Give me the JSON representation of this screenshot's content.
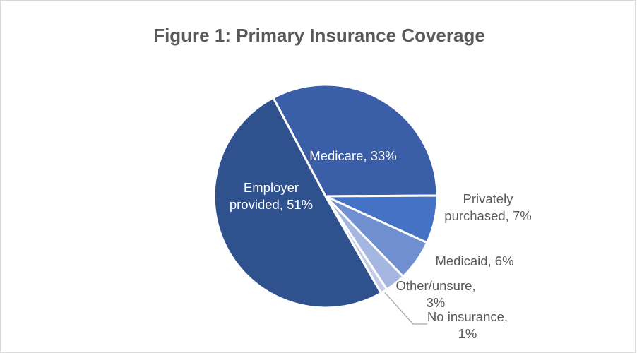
{
  "chart_data": {
    "type": "pie",
    "title": "Figure 1: Primary Insurance Coverage",
    "slices": [
      {
        "label": "Medicare",
        "value": 33,
        "display": "Medicare, 33%",
        "lines": [
          "Medicare, 33%"
        ],
        "color": "#3a5ea8"
      },
      {
        "label": "Privately purchased",
        "value": 7,
        "display": "Privately purchased, 7%",
        "lines": [
          "Privately",
          "purchased, 7%"
        ],
        "color": "#4472c4"
      },
      {
        "label": "Medicaid",
        "value": 6,
        "display": "Medicaid, 6%",
        "lines": [
          "Medicaid, 6%"
        ],
        "color": "#6f8fd0"
      },
      {
        "label": "Other/unsure",
        "value": 3,
        "display": "Other/unsure, 3%",
        "lines": [
          "Other/unsure,",
          "3%"
        ],
        "color": "#a5b6e0"
      },
      {
        "label": "No insurance",
        "value": 1,
        "display": "No insurance, 1%",
        "lines": [
          "No insurance,",
          "1%"
        ],
        "color": "#c3cde9"
      },
      {
        "label": "Employer provided",
        "value": 51,
        "display": "Employer provided, 51%",
        "lines": [
          "Employer",
          "provided, 51%"
        ],
        "color": "#2f528f"
      }
    ]
  }
}
